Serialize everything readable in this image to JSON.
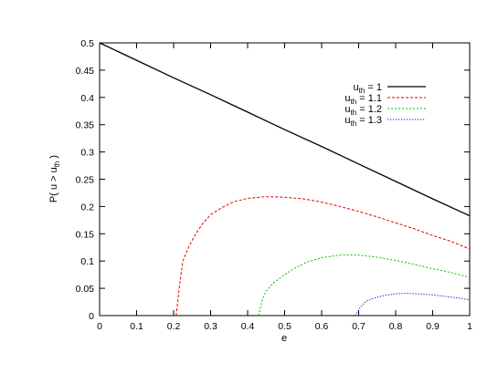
{
  "chart_data": {
    "type": "line",
    "title": "",
    "xlabel": "e",
    "ylabel": {
      "main": "P( u > u",
      "sub": "th",
      "tail": " )"
    },
    "xlim": [
      0,
      1
    ],
    "ylim": [
      0,
      0.5
    ],
    "xticks": [
      "0",
      "0.1",
      "0.2",
      "0.3",
      "0.4",
      "0.5",
      "0.6",
      "0.7",
      "0.8",
      "0.9",
      "1"
    ],
    "yticks": [
      "0",
      "0.05",
      "0.1",
      "0.15",
      "0.2",
      "0.25",
      "0.3",
      "0.35",
      "0.4",
      "0.45",
      "0.5"
    ],
    "grid": false,
    "legend_position": "top-right",
    "series": [
      {
        "name": {
          "main": "u",
          "sub": "th",
          "tail": " = 1"
        },
        "color": "#000000",
        "dash": "solid",
        "x": [
          0,
          0.1,
          0.2,
          0.3,
          0.4,
          0.5,
          0.6,
          0.7,
          0.8,
          0.9,
          1.0
        ],
        "y": [
          0.5,
          0.468,
          0.436,
          0.405,
          0.373,
          0.341,
          0.31,
          0.278,
          0.246,
          0.214,
          0.183
        ]
      },
      {
        "name": {
          "main": "u",
          "sub": "th",
          "tail": " = 1.1"
        },
        "color": "#e00000",
        "dash": "dashed",
        "x": [
          0.207,
          0.215,
          0.225,
          0.24,
          0.26,
          0.28,
          0.3,
          0.33,
          0.36,
          0.4,
          0.45,
          0.5,
          0.55,
          0.6,
          0.65,
          0.7,
          0.75,
          0.8,
          0.85,
          0.9,
          0.95,
          1.0
        ],
        "y": [
          0.0,
          0.05,
          0.1,
          0.125,
          0.15,
          0.17,
          0.185,
          0.198,
          0.208,
          0.215,
          0.218,
          0.217,
          0.214,
          0.208,
          0.2,
          0.191,
          0.181,
          0.17,
          0.159,
          0.147,
          0.136,
          0.122
        ]
      },
      {
        "name": {
          "main": "u",
          "sub": "th",
          "tail": " = 1.2"
        },
        "color": "#00c000",
        "dash": "dashed",
        "x": [
          0.43,
          0.44,
          0.45,
          0.47,
          0.5,
          0.53,
          0.56,
          0.6,
          0.65,
          0.7,
          0.75,
          0.8,
          0.85,
          0.9,
          0.95,
          1.0
        ],
        "y": [
          0.0,
          0.03,
          0.045,
          0.06,
          0.075,
          0.088,
          0.098,
          0.106,
          0.111,
          0.111,
          0.107,
          0.101,
          0.094,
          0.086,
          0.079,
          0.07
        ],
        "dash_pattern": "short"
      },
      {
        "name": {
          "main": "u",
          "sub": "th",
          "tail": " = 1.3"
        },
        "color": "#0000e0",
        "dash": "dotted",
        "x": [
          0.69,
          0.7,
          0.71,
          0.72,
          0.74,
          0.77,
          0.8,
          0.83,
          0.86,
          0.9,
          0.95,
          1.0
        ],
        "y": [
          0.0,
          0.01,
          0.02,
          0.026,
          0.032,
          0.037,
          0.04,
          0.041,
          0.04,
          0.038,
          0.034,
          0.029
        ]
      }
    ]
  }
}
